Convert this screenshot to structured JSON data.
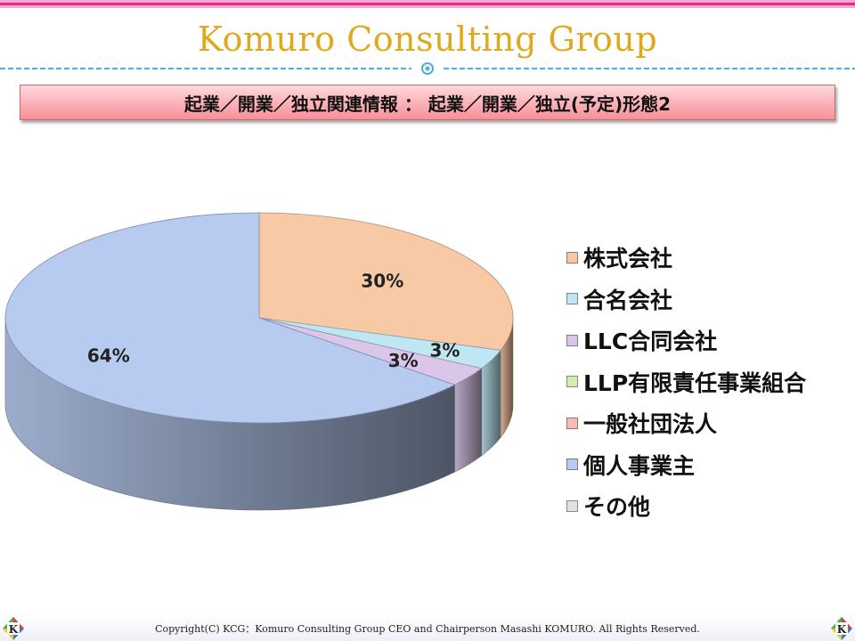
{
  "header": {
    "brand": "Komuro Consulting Group",
    "banner": "起業／開業／独立関連情報 ： 起業／開業／独立(予定)形態2"
  },
  "chart_data": {
    "type": "pie",
    "labels": [
      "株式会社",
      "合名会社",
      "LLC合同会社",
      "LLP有限責任事業組合",
      "一般社団法人",
      "個人事業主",
      "その他"
    ],
    "values": [
      30,
      3,
      3,
      0,
      0,
      64,
      0
    ],
    "data_labels": [
      "30%",
      "3%",
      "3%",
      "",
      "",
      "64%",
      ""
    ],
    "colors": [
      "#f7c9a4",
      "#bfe6f3",
      "#d9c6e8",
      "#d6ecb5",
      "#f5bcbc",
      "#b7cbf0",
      "#e2e2e2"
    ],
    "legend_position": "right",
    "style": "3d"
  },
  "footer": {
    "copyright": "Copyright(C) KCG：Komuro Consulting Group CEO and Chairperson Masashi KOMURO. All Rights Reserved.",
    "logo_letter": "K"
  }
}
